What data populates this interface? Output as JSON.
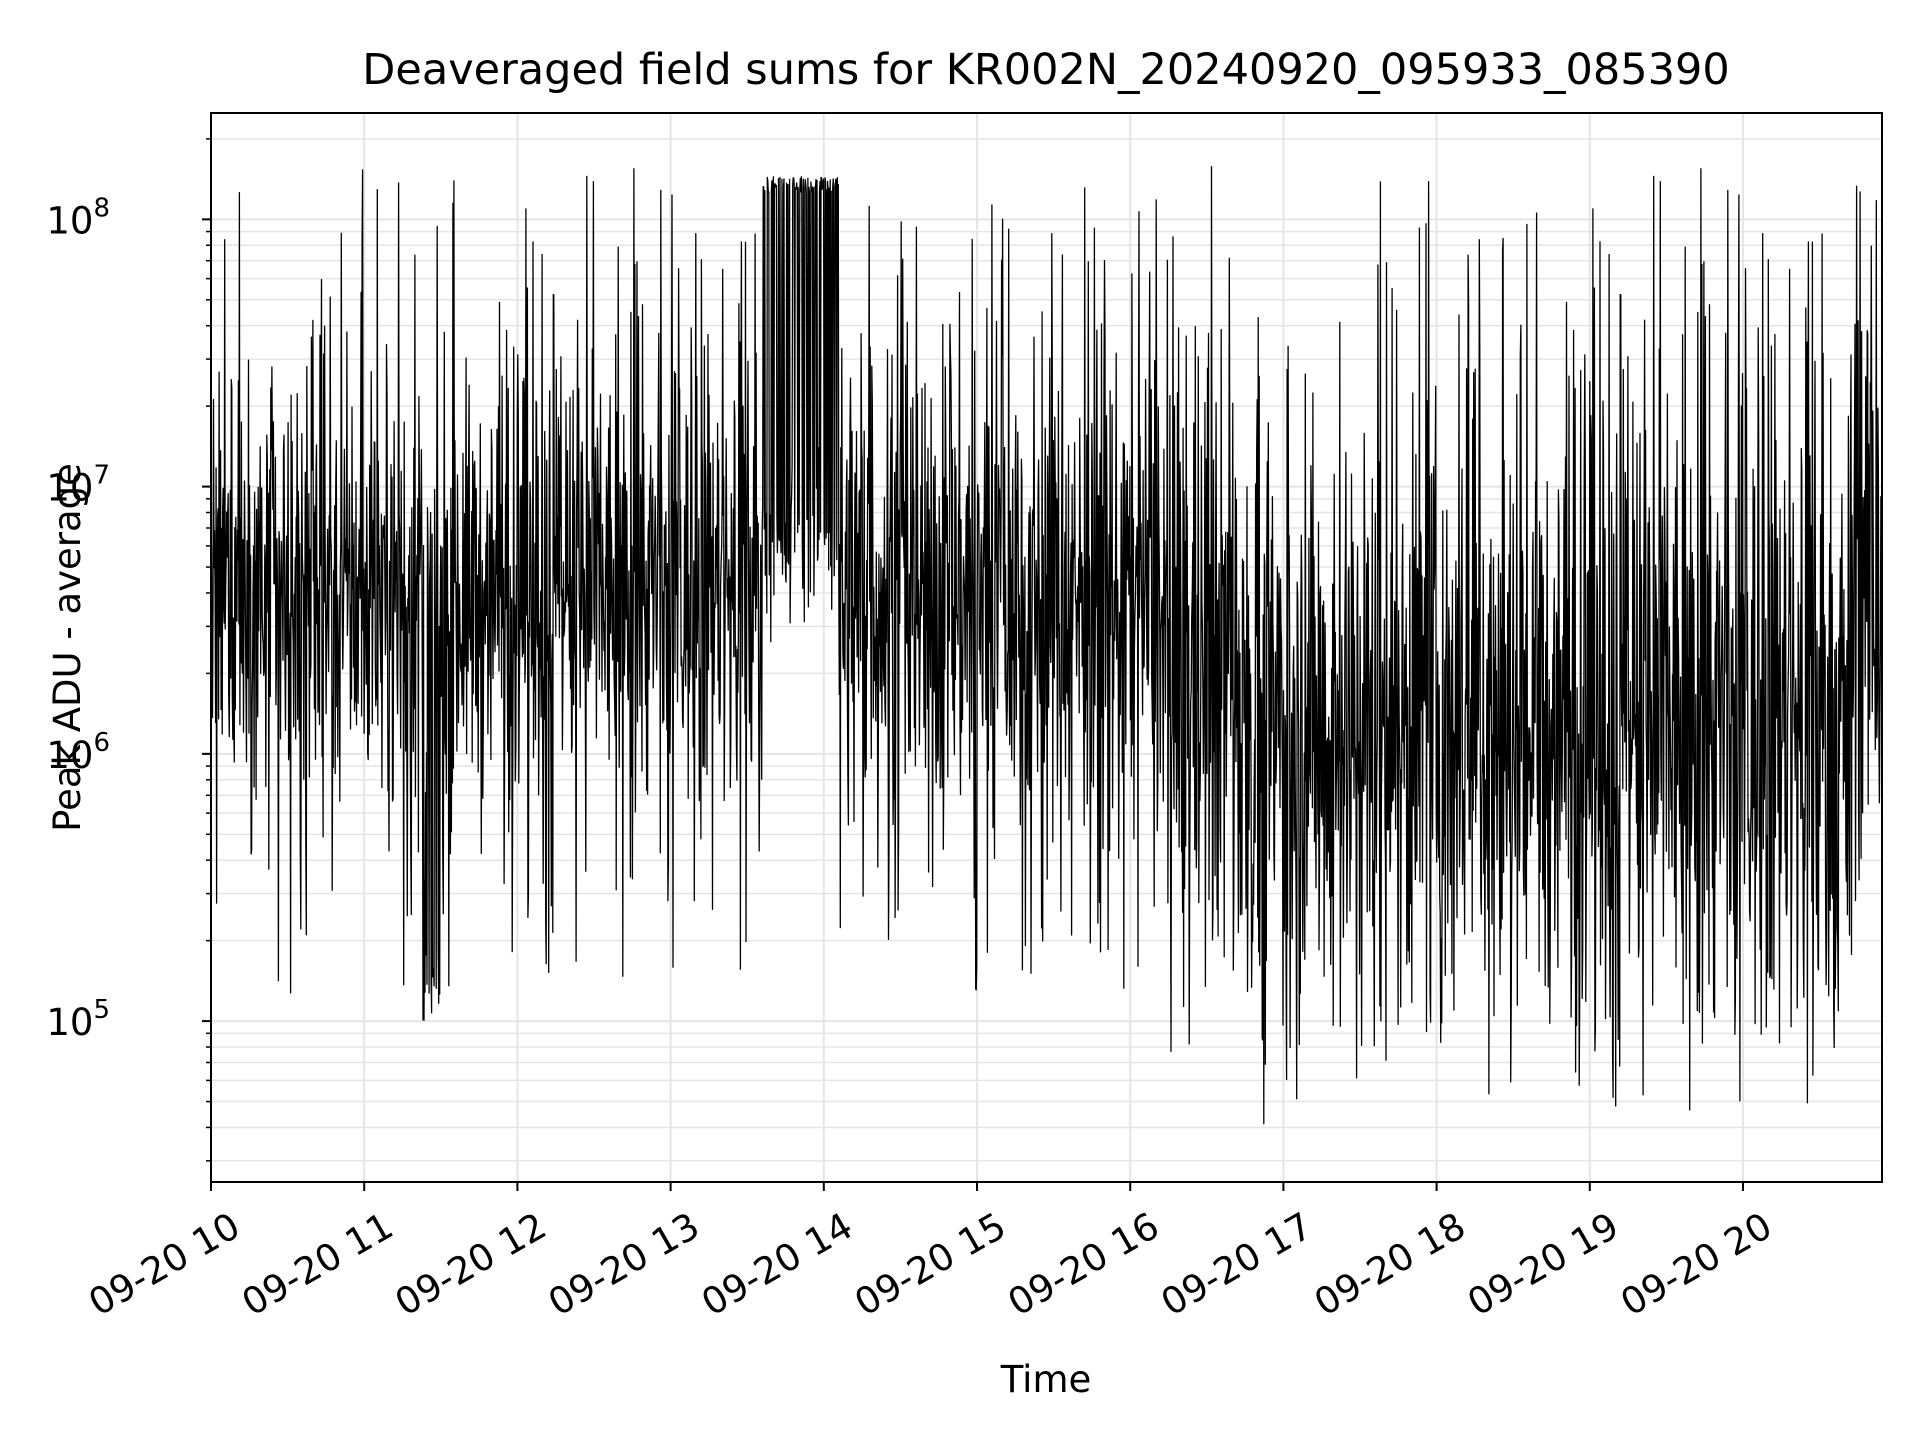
{
  "chart_data": {
    "type": "line",
    "title": "Deaveraged field sums for KR002N_20240920_095933_085390",
    "xlabel": "Time",
    "ylabel": "Peak ADU - average",
    "yscale": "log",
    "ylim": [
      25000,
      250000000
    ],
    "xlim": [
      "2024-09-20 10:00",
      "2024-09-20 20:55"
    ],
    "grid": "on (major and minor)",
    "line_color": "#000000",
    "grid_color": "#e5e5e5",
    "x_tick_labels": [
      "09-20 10",
      "09-20 11",
      "09-20 12",
      "09-20 13",
      "09-20 14",
      "09-20 15",
      "09-20 16",
      "09-20 17",
      "09-20 18",
      "09-20 19",
      "09-20 20"
    ],
    "y_ticks": [
      {
        "value": 100000,
        "base": "10",
        "exp": "5"
      },
      {
        "value": 1000000,
        "base": "10",
        "exp": "6"
      },
      {
        "value": 10000000,
        "base": "10",
        "exp": "7"
      },
      {
        "value": 100000000,
        "base": "10",
        "exp": "8"
      }
    ],
    "series": [
      {
        "points_note_hours": "x in hours after 2024-09-20 10:00",
        "x": [
          0.0,
          0.25,
          0.5,
          0.75,
          1.0,
          1.25,
          1.5,
          1.75,
          2.0,
          2.25,
          2.5,
          2.75,
          3.0,
          3.25,
          3.5,
          3.75,
          4.0,
          4.25,
          4.5,
          4.75,
          5.0,
          5.25,
          5.5,
          5.75,
          6.0,
          6.25,
          6.5,
          6.75,
          7.0,
          7.25,
          7.5,
          7.75,
          8.0,
          8.25,
          8.5,
          8.75,
          9.0,
          9.25,
          9.5,
          9.75,
          10.0,
          10.25,
          10.5,
          10.75,
          10.92
        ],
        "y": [
          5000000,
          3000000,
          4000000,
          6000000,
          6000000,
          3500000,
          4500000,
          5000000,
          3000000,
          3500000,
          3500000,
          3000000,
          4000000,
          3500000,
          3000000,
          60000000,
          80000000,
          30000000,
          4000000,
          3500000,
          3000000,
          3500000,
          3000000,
          3000000,
          2500000,
          2000000,
          1500000,
          1200000,
          1500000,
          1300000,
          1000000,
          1000000,
          1200000,
          1000000,
          1300000,
          1200000,
          1500000,
          1000000,
          1200000,
          1000000,
          1000000,
          1000000,
          1000000,
          6000000,
          5000000
        ]
      }
    ]
  }
}
